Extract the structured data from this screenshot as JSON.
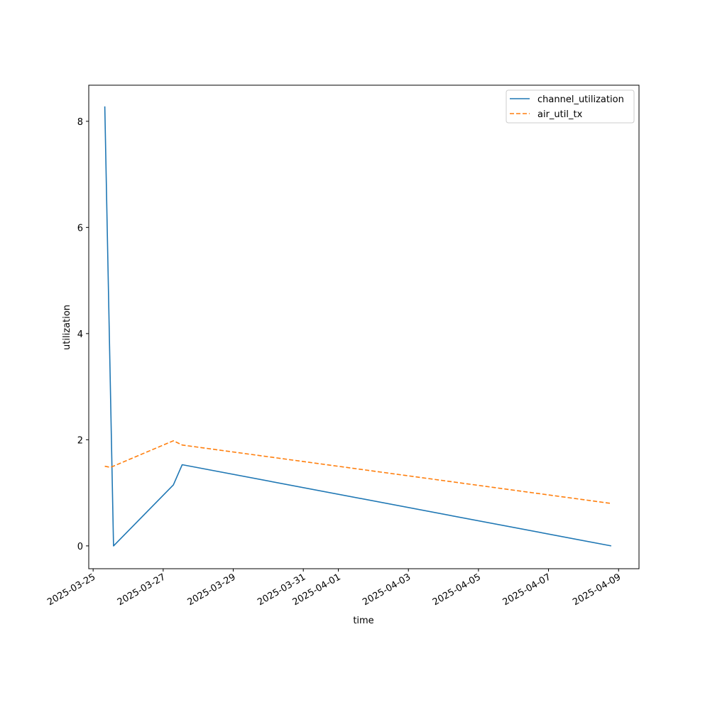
{
  "chart_data": {
    "type": "line",
    "title": "",
    "xlabel": "time",
    "ylabel": "utilization",
    "x_ticks": [
      "2025-03-25",
      "2025-03-27",
      "2025-03-29",
      "2025-03-31",
      "2025-04-01",
      "2025-04-03",
      "2025-04-05",
      "2025-04-07",
      "2025-04-09"
    ],
    "y_ticks": [
      0,
      2,
      4,
      6,
      8
    ],
    "xlim": [
      "2025-03-24T21:00",
      "2025-04-09T14:00"
    ],
    "ylim": [
      -0.43,
      8.68
    ],
    "grid": false,
    "legend_position": "top-right",
    "series": [
      {
        "name": "channel_utilization",
        "color": "#1f77b4",
        "style": "solid",
        "points": [
          {
            "x": "2025-03-25T08:00",
            "y": 8.28
          },
          {
            "x": "2025-03-25T14:00",
            "y": 0.0
          },
          {
            "x": "2025-03-27T07:00",
            "y": 1.15
          },
          {
            "x": "2025-03-27T13:00",
            "y": 1.53
          },
          {
            "x": "2025-04-08T19:00",
            "y": 0.0
          }
        ]
      },
      {
        "name": "air_util_tx",
        "color": "#ff7f0e",
        "style": "dashed",
        "points": [
          {
            "x": "2025-03-25T08:00",
            "y": 1.5
          },
          {
            "x": "2025-03-25T12:00",
            "y": 1.48
          },
          {
            "x": "2025-03-27T07:00",
            "y": 1.98
          },
          {
            "x": "2025-03-27T13:00",
            "y": 1.9
          },
          {
            "x": "2025-04-08T19:00",
            "y": 0.8
          }
        ]
      }
    ]
  }
}
